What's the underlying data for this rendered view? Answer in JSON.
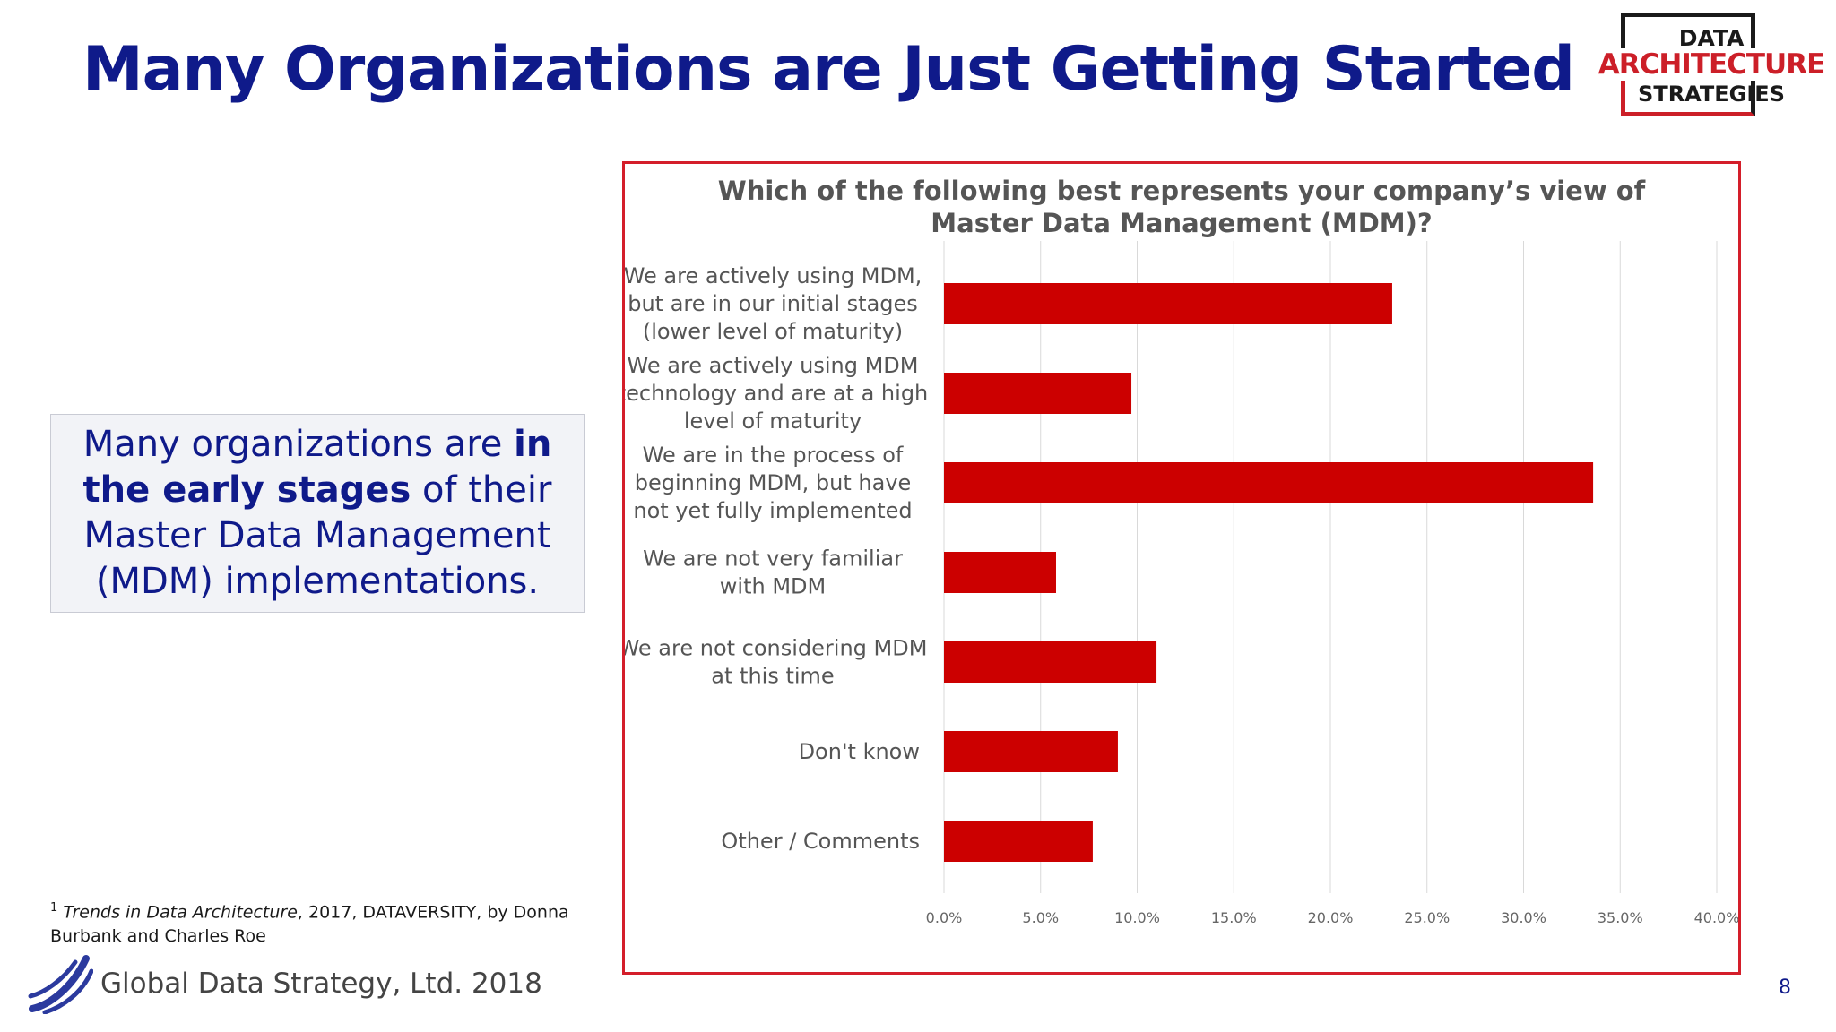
{
  "slide": {
    "title": "Many Organizations are Just Getting Started",
    "page_number": "8",
    "footer_text": "Global Data Strategy, Ltd. 2018"
  },
  "logo": {
    "line1": "DATA",
    "line2": "ARCHITECTURE",
    "line3": "STRATEGIES"
  },
  "callout": {
    "part1": "Many organizations are ",
    "bold": "in the early stages",
    "part2": " of their Master Data Management (MDM) implementations."
  },
  "footnote": {
    "marker": "1",
    "title": "Trends in Data Architecture",
    "rest": ", 2017, DATAVERSITY, by Donna Burbank and Charles Roe"
  },
  "colors": {
    "title_blue": "#0f1a8a",
    "bar_red": "#cc0000",
    "frame_red": "#d41e2a"
  },
  "chart_data": {
    "type": "bar",
    "orientation": "horizontal",
    "title_lines": [
      "Which of the following best represents your company’s view of",
      "Master Data Management (MDM)?"
    ],
    "categories": [
      [
        "We are actively using MDM,",
        "but are in our initial stages",
        "(lower level of maturity)"
      ],
      [
        "We are actively using MDM",
        "technology and are at a high",
        "level of maturity"
      ],
      [
        "We are in the process of",
        "beginning MDM, but have",
        "not yet fully implemented"
      ],
      [
        "We are not very familiar",
        "with MDM"
      ],
      [
        "We are not considering MDM",
        "at this time"
      ],
      [
        "Don't know"
      ],
      [
        "Other / Comments"
      ]
    ],
    "values": [
      23.2,
      9.7,
      33.6,
      5.8,
      11.0,
      9.0,
      7.7
    ],
    "xlim": [
      0,
      40
    ],
    "x_ticks": [
      "0.0%",
      "5.0%",
      "10.0%",
      "15.0%",
      "20.0%",
      "25.0%",
      "30.0%",
      "35.0%",
      "40.0%"
    ],
    "grid": true,
    "legend": "none"
  }
}
